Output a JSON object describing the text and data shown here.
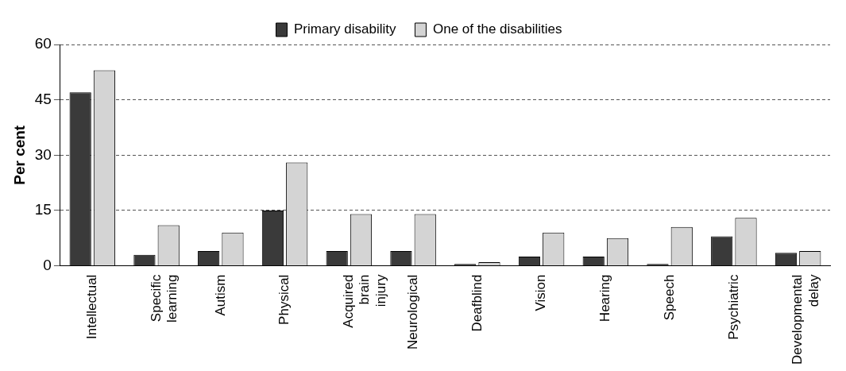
{
  "chart_data": {
    "type": "bar",
    "ylabel": "Per cent",
    "categories": [
      "Intellectual",
      "Specific learning",
      "Autism",
      "Physical",
      "Acquired brain injury",
      "Neurological",
      "Deafblind",
      "Vision",
      "Hearing",
      "Speech",
      "Psychiatric",
      "Developmental delay"
    ],
    "series": [
      {
        "name": "Primary disability",
        "color": "#3a3a3a",
        "values": [
          47,
          3,
          4,
          15,
          4,
          4,
          0.5,
          2.5,
          2.5,
          0.5,
          8,
          3.5
        ]
      },
      {
        "name": "One of the disabilities",
        "color": "#d4d4d4",
        "values": [
          53,
          11,
          9,
          28,
          14,
          14,
          1,
          9,
          7.5,
          10.5,
          13,
          4
        ]
      }
    ],
    "ylim": [
      0,
      60
    ],
    "yticks": [
      0,
      15,
      30,
      45,
      60
    ],
    "grid": "y",
    "legend": "top"
  }
}
